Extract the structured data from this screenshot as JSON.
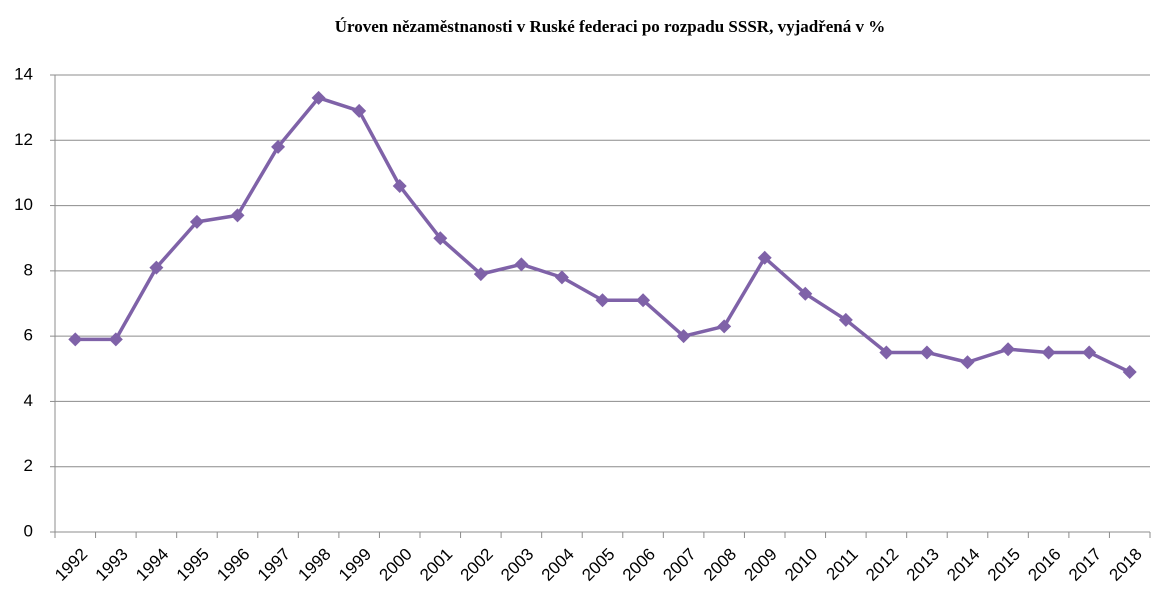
{
  "chart_data": {
    "type": "line",
    "title": "Úroven nězaměstnanosti  v Ruské federaci po rozpadu SSSR, vyjadřená v %",
    "categories": [
      "1992",
      "1993",
      "1994",
      "1995",
      "1996",
      "1997",
      "1998",
      "1999",
      "2000",
      "2001",
      "2002",
      "2003",
      "2004",
      "2005",
      "2006",
      "2007",
      "2008",
      "2009",
      "2010",
      "2011",
      "2012",
      "2013",
      "2014",
      "2015",
      "2016",
      "2017",
      "2018"
    ],
    "values": [
      5.9,
      5.9,
      8.1,
      9.5,
      9.7,
      11.8,
      13.3,
      12.9,
      10.6,
      9.0,
      7.9,
      8.2,
      7.8,
      7.1,
      7.1,
      6.0,
      6.3,
      8.4,
      7.3,
      6.5,
      5.5,
      5.5,
      5.2,
      5.6,
      5.5,
      5.5,
      4.9
    ],
    "color": "#7f62a8",
    "ylim": [
      0,
      14
    ],
    "yticks": [
      0,
      2,
      4,
      6,
      8,
      10,
      12,
      14
    ],
    "grid": true
  }
}
